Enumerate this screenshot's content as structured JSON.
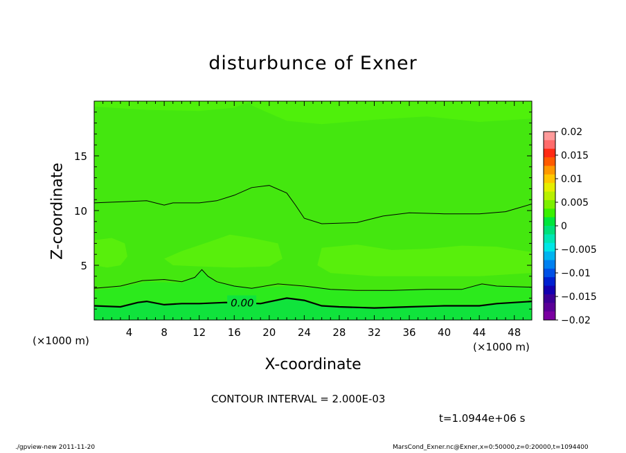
{
  "chart_data": {
    "type": "heatmap",
    "title": "disturbunce of Exner",
    "xlabel": "X-coordinate",
    "ylabel": "Z-coordinate",
    "x_unit_left": "(×1000 m)",
    "x_unit_right": "(×1000 m)",
    "xlim": [
      0,
      50
    ],
    "ylim": [
      0,
      20
    ],
    "x_ticks": [
      4,
      8,
      12,
      16,
      20,
      24,
      28,
      32,
      36,
      40,
      44,
      48
    ],
    "y_ticks": [
      5,
      10,
      15
    ],
    "contour_label": "0.00",
    "contour_interval_text": "CONTOUR INTERVAL = 2.000E-03",
    "time_text": "t=1.0944e+06 s",
    "colorbar": {
      "labels": [
        "0.02",
        "0.015",
        "0.01",
        "0.005",
        "0",
        "−0.005",
        "−0.01",
        "−0.015",
        "−0.02"
      ],
      "colors": [
        "#ff9a9a",
        "#ff6b6b",
        "#ff2a14",
        "#ff5a00",
        "#ff9800",
        "#ffc700",
        "#e6ee00",
        "#b8f000",
        "#7cf000",
        "#39f000",
        "#00e63c",
        "#00e07a",
        "#00e6b4",
        "#00e6e6",
        "#00b4f0",
        "#0080f0",
        "#0050e6",
        "#0020d0",
        "#1400b0",
        "#3c0096",
        "#5a0096",
        "#7a00a0"
      ]
    },
    "fill_colors": {
      "base": "#44e70f",
      "upper_band": "#4ff00b",
      "mid_band": "#58ef0c",
      "low_band": "#2cea1c",
      "bottom_band": "#10e33c"
    }
  },
  "footer": {
    "left": "./gpview-new  2011-11-20",
    "right": "MarsCond_Exner.nc@Exner,x=0:50000,z=0:20000,t=1094400"
  }
}
